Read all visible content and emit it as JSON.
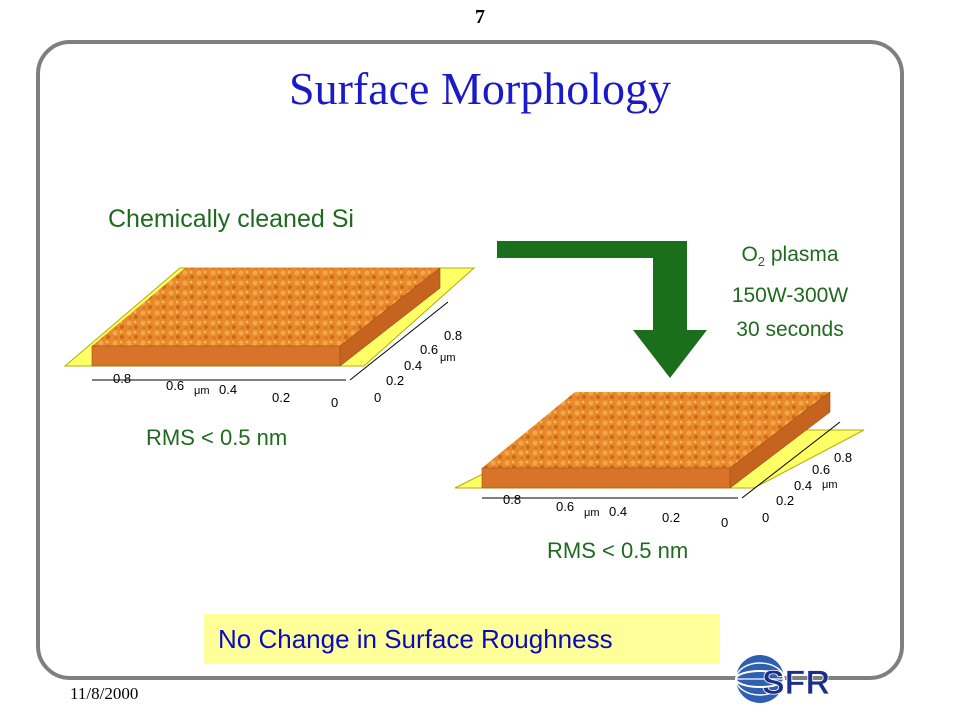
{
  "slide": {
    "page_number": "7",
    "title": "Surface Morphology",
    "date": "11/8/2000"
  },
  "left_sample": {
    "label": "Chemically cleaned Si",
    "rms": "RMS < 0.5 nm",
    "x_ticks": [
      "0.8",
      "0.6",
      "0.4",
      "0.2",
      "0"
    ],
    "y_ticks": [
      "0",
      "0.2",
      "0.4",
      "0.6",
      "0.8"
    ],
    "x_unit": "μm",
    "y_unit": "μm"
  },
  "right_sample": {
    "rms": "RMS < 0.5 nm",
    "x_ticks": [
      "0.8",
      "0.6",
      "0.4",
      "0.2",
      "0"
    ],
    "y_ticks": [
      "0",
      "0.2",
      "0.4",
      "0.6",
      "0.8"
    ],
    "x_unit": "μm",
    "y_unit": "μm"
  },
  "process": {
    "gas": "O",
    "gas_subscript": "2",
    "gas_suffix": " plasma",
    "power": "150W-300W",
    "duration": "30 seconds"
  },
  "conclusion": "No Change in Surface Roughness",
  "logo": {
    "text": "SFR",
    "icon": "globe-logo-icon"
  },
  "colors": {
    "title": "#1a1ac8",
    "label": "#1f6a1f",
    "arrow": "#1b6e1b",
    "conclusion_bg": "#ffff99",
    "conclusion_text": "#0a0abf",
    "surface": "#e88a2c",
    "base_plane": "#ffff66"
  }
}
